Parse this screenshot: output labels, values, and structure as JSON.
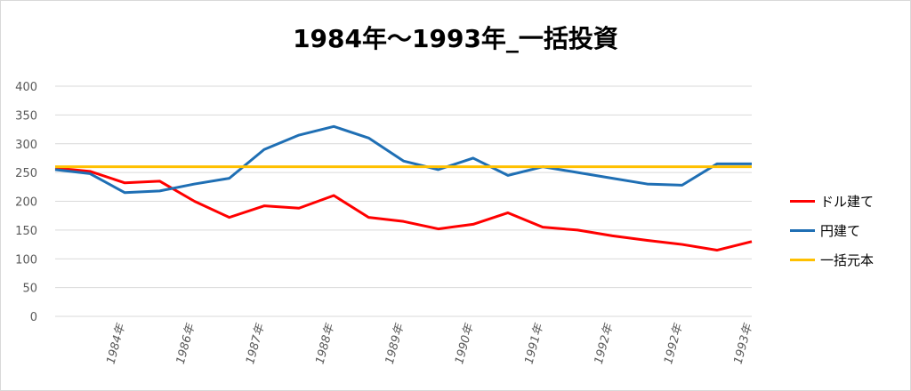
{
  "chart_data": {
    "type": "line",
    "title": "1984年～1993年_一括投資",
    "ylim": [
      0,
      400
    ],
    "yticks": [
      0,
      50,
      100,
      150,
      200,
      250,
      300,
      350,
      400
    ],
    "xticks": [
      "1984年",
      "1986年",
      "1987年",
      "1988年",
      "1989年",
      "1990年",
      "1991年",
      "1992年",
      "1992年",
      "1993年"
    ],
    "grid": true,
    "legend_position": "right",
    "x": [
      0,
      0.05,
      0.1,
      0.15,
      0.2,
      0.25,
      0.3,
      0.35,
      0.4,
      0.45,
      0.5,
      0.55,
      0.6,
      0.65,
      0.7,
      0.75,
      0.8,
      0.85,
      0.9,
      0.95,
      1.0
    ],
    "series": [
      {
        "name": "ドル建て",
        "color": "#ff0000",
        "values": [
          258,
          252,
          232,
          235,
          200,
          172,
          192,
          188,
          210,
          172,
          165,
          152,
          160,
          180,
          155,
          150,
          140,
          132,
          125,
          115,
          130
        ]
      },
      {
        "name": "円建て",
        "color": "#1f6fb4",
        "values": [
          255,
          248,
          215,
          218,
          230,
          240,
          290,
          315,
          330,
          310,
          270,
          255,
          275,
          245,
          260,
          250,
          240,
          230,
          228,
          265,
          265
        ]
      },
      {
        "name": "一括元本",
        "color": "#ffc000",
        "values": [
          260,
          260,
          260,
          260,
          260,
          260,
          260,
          260,
          260,
          260,
          260,
          260,
          260,
          260,
          260,
          260,
          260,
          260,
          260,
          260,
          260
        ]
      }
    ]
  }
}
